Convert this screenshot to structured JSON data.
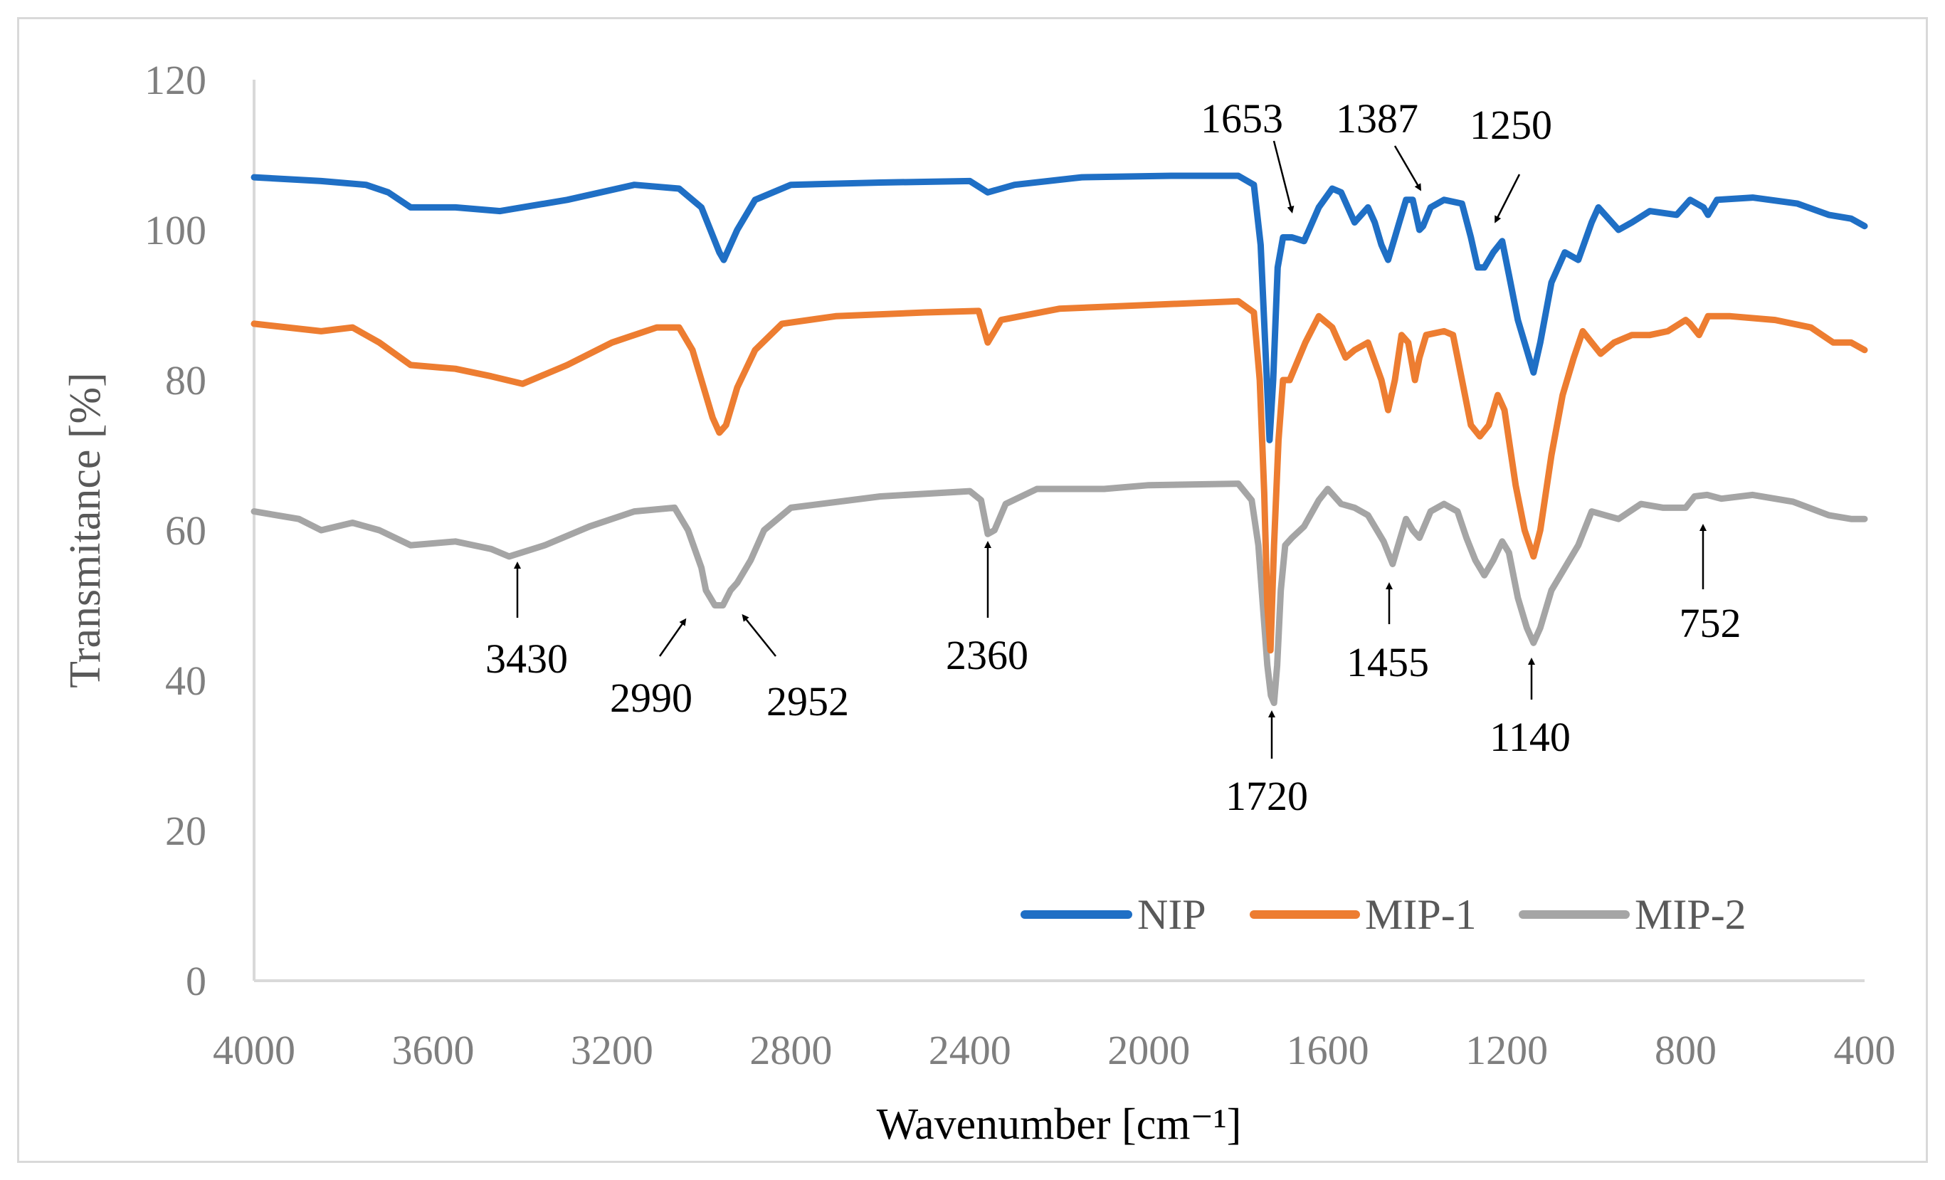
{
  "chart_data": {
    "type": "line",
    "title": "",
    "xlabel": "Wavenumber [cm⁻¹]",
    "ylabel": "Transmitance [%]",
    "xlim": [
      4000,
      400
    ],
    "ylim": [
      0,
      120
    ],
    "x_ticks": [
      "4000",
      "3600",
      "3200",
      "2800",
      "2400",
      "2000",
      "1600",
      "1200",
      "800",
      "400"
    ],
    "y_ticks": [
      "0",
      "20",
      "40",
      "60",
      "80",
      "100",
      "120"
    ],
    "legend_position": "bottom-right",
    "series": [
      {
        "name": "NIP",
        "color": "#1f6fc5",
        "points": [
          [
            4000,
            107
          ],
          [
            3850,
            106.5
          ],
          [
            3750,
            106
          ],
          [
            3700,
            105
          ],
          [
            3650,
            103
          ],
          [
            3550,
            103
          ],
          [
            3450,
            102.5
          ],
          [
            3300,
            104
          ],
          [
            3150,
            106
          ],
          [
            3050,
            105.5
          ],
          [
            3000,
            103
          ],
          [
            2980,
            100
          ],
          [
            2960,
            97
          ],
          [
            2950,
            96
          ],
          [
            2920,
            100
          ],
          [
            2880,
            104
          ],
          [
            2800,
            106
          ],
          [
            2600,
            106.3
          ],
          [
            2400,
            106.5
          ],
          [
            2360,
            105
          ],
          [
            2300,
            106
          ],
          [
            2150,
            107
          ],
          [
            1950,
            107.2
          ],
          [
            1800,
            107.2
          ],
          [
            1765,
            106
          ],
          [
            1750,
            98
          ],
          [
            1740,
            85
          ],
          [
            1730,
            72
          ],
          [
            1722,
            80
          ],
          [
            1712,
            95
          ],
          [
            1700,
            99
          ],
          [
            1680,
            99
          ],
          [
            1653,
            98.5
          ],
          [
            1620,
            103
          ],
          [
            1590,
            105.5
          ],
          [
            1570,
            105
          ],
          [
            1540,
            101
          ],
          [
            1510,
            103
          ],
          [
            1495,
            101
          ],
          [
            1480,
            98
          ],
          [
            1465,
            96
          ],
          [
            1450,
            99
          ],
          [
            1440,
            101
          ],
          [
            1425,
            104
          ],
          [
            1410,
            104
          ],
          [
            1395,
            100
          ],
          [
            1387,
            100.5
          ],
          [
            1370,
            103
          ],
          [
            1340,
            104
          ],
          [
            1300,
            103.5
          ],
          [
            1280,
            99
          ],
          [
            1265,
            95
          ],
          [
            1250,
            95
          ],
          [
            1230,
            97
          ],
          [
            1210,
            98.5
          ],
          [
            1195,
            94
          ],
          [
            1175,
            88
          ],
          [
            1155,
            84
          ],
          [
            1140,
            81
          ],
          [
            1125,
            85
          ],
          [
            1100,
            93
          ],
          [
            1070,
            97
          ],
          [
            1040,
            96
          ],
          [
            1010,
            101
          ],
          [
            995,
            103
          ],
          [
            980,
            102
          ],
          [
            950,
            100
          ],
          [
            920,
            101
          ],
          [
            880,
            102.5
          ],
          [
            820,
            102
          ],
          [
            790,
            104
          ],
          [
            760,
            103
          ],
          [
            750,
            102
          ],
          [
            730,
            104
          ],
          [
            650,
            104.3
          ],
          [
            550,
            103.5
          ],
          [
            480,
            102
          ],
          [
            430,
            101.5
          ],
          [
            400,
            100.5
          ]
        ]
      },
      {
        "name": "MIP-1",
        "color": "#ed7d31",
        "points": [
          [
            4000,
            87.5
          ],
          [
            3850,
            86.5
          ],
          [
            3780,
            87
          ],
          [
            3720,
            85
          ],
          [
            3650,
            82
          ],
          [
            3550,
            81.5
          ],
          [
            3470,
            80.5
          ],
          [
            3400,
            79.5
          ],
          [
            3300,
            82
          ],
          [
            3200,
            85
          ],
          [
            3100,
            87
          ],
          [
            3050,
            87
          ],
          [
            3020,
            84
          ],
          [
            3000,
            80
          ],
          [
            2975,
            75
          ],
          [
            2960,
            73
          ],
          [
            2945,
            74
          ],
          [
            2920,
            79
          ],
          [
            2880,
            84
          ],
          [
            2820,
            87.5
          ],
          [
            2700,
            88.5
          ],
          [
            2500,
            89
          ],
          [
            2380,
            89.2
          ],
          [
            2360,
            85
          ],
          [
            2330,
            88
          ],
          [
            2200,
            89.5
          ],
          [
            2000,
            90
          ],
          [
            1800,
            90.5
          ],
          [
            1765,
            89
          ],
          [
            1752,
            80
          ],
          [
            1742,
            65
          ],
          [
            1735,
            50
          ],
          [
            1728,
            44
          ],
          [
            1720,
            58
          ],
          [
            1710,
            72
          ],
          [
            1700,
            80
          ],
          [
            1685,
            80
          ],
          [
            1650,
            85
          ],
          [
            1620,
            88.5
          ],
          [
            1590,
            87
          ],
          [
            1560,
            83
          ],
          [
            1540,
            84
          ],
          [
            1510,
            85
          ],
          [
            1480,
            80
          ],
          [
            1465,
            76
          ],
          [
            1450,
            80
          ],
          [
            1435,
            86
          ],
          [
            1420,
            85
          ],
          [
            1405,
            80
          ],
          [
            1395,
            83
          ],
          [
            1380,
            86
          ],
          [
            1340,
            86.5
          ],
          [
            1320,
            86
          ],
          [
            1300,
            80
          ],
          [
            1280,
            74
          ],
          [
            1260,
            72.5
          ],
          [
            1240,
            74
          ],
          [
            1220,
            78
          ],
          [
            1205,
            76
          ],
          [
            1180,
            66
          ],
          [
            1160,
            60
          ],
          [
            1140,
            56.5
          ],
          [
            1125,
            60
          ],
          [
            1100,
            70
          ],
          [
            1075,
            78
          ],
          [
            1050,
            83
          ],
          [
            1030,
            86.5
          ],
          [
            1010,
            85
          ],
          [
            990,
            83.5
          ],
          [
            960,
            85
          ],
          [
            920,
            86
          ],
          [
            880,
            86
          ],
          [
            840,
            86.5
          ],
          [
            800,
            88
          ],
          [
            790,
            87.5
          ],
          [
            770,
            86
          ],
          [
            750,
            88.5
          ],
          [
            700,
            88.5
          ],
          [
            600,
            88
          ],
          [
            520,
            87
          ],
          [
            470,
            85
          ],
          [
            430,
            85
          ],
          [
            400,
            84
          ]
        ]
      },
      {
        "name": "MIP-2",
        "color": "#a5a5a5",
        "points": [
          [
            4000,
            62.5
          ],
          [
            3900,
            61.5
          ],
          [
            3850,
            60
          ],
          [
            3780,
            61
          ],
          [
            3720,
            60
          ],
          [
            3650,
            58
          ],
          [
            3550,
            58.5
          ],
          [
            3470,
            57.5
          ],
          [
            3430,
            56.5
          ],
          [
            3350,
            58
          ],
          [
            3250,
            60.5
          ],
          [
            3150,
            62.5
          ],
          [
            3060,
            63
          ],
          [
            3030,
            60
          ],
          [
            3000,
            55
          ],
          [
            2990,
            52
          ],
          [
            2970,
            50
          ],
          [
            2952,
            50
          ],
          [
            2935,
            52
          ],
          [
            2920,
            53
          ],
          [
            2890,
            56
          ],
          [
            2860,
            60
          ],
          [
            2800,
            63
          ],
          [
            2600,
            64.5
          ],
          [
            2400,
            65.2
          ],
          [
            2375,
            64
          ],
          [
            2360,
            59.5
          ],
          [
            2345,
            60
          ],
          [
            2320,
            63.5
          ],
          [
            2250,
            65.5
          ],
          [
            2100,
            65.5
          ],
          [
            2000,
            66
          ],
          [
            1800,
            66.2
          ],
          [
            1770,
            64
          ],
          [
            1755,
            58
          ],
          [
            1745,
            50
          ],
          [
            1735,
            42
          ],
          [
            1727,
            38
          ],
          [
            1720,
            37
          ],
          [
            1713,
            42
          ],
          [
            1705,
            52
          ],
          [
            1695,
            58
          ],
          [
            1680,
            59
          ],
          [
            1653,
            60.5
          ],
          [
            1620,
            64
          ],
          [
            1600,
            65.5
          ],
          [
            1570,
            63.5
          ],
          [
            1540,
            63
          ],
          [
            1510,
            62
          ],
          [
            1490,
            60
          ],
          [
            1475,
            58.5
          ],
          [
            1455,
            55.5
          ],
          [
            1440,
            58.5
          ],
          [
            1425,
            61.5
          ],
          [
            1410,
            60
          ],
          [
            1395,
            59
          ],
          [
            1370,
            62.5
          ],
          [
            1340,
            63.5
          ],
          [
            1310,
            62.5
          ],
          [
            1290,
            59
          ],
          [
            1270,
            56
          ],
          [
            1250,
            54
          ],
          [
            1230,
            56
          ],
          [
            1210,
            58.5
          ],
          [
            1195,
            57
          ],
          [
            1175,
            51
          ],
          [
            1155,
            47
          ],
          [
            1140,
            45
          ],
          [
            1125,
            47
          ],
          [
            1100,
            52
          ],
          [
            1070,
            55
          ],
          [
            1040,
            58
          ],
          [
            1010,
            62.5
          ],
          [
            980,
            62
          ],
          [
            950,
            61.5
          ],
          [
            900,
            63.5
          ],
          [
            850,
            63
          ],
          [
            800,
            63
          ],
          [
            780,
            64.5
          ],
          [
            752,
            64.7
          ],
          [
            720,
            64.2
          ],
          [
            650,
            64.7
          ],
          [
            560,
            63.8
          ],
          [
            480,
            62
          ],
          [
            430,
            61.5
          ],
          [
            400,
            61.5
          ]
        ]
      }
    ],
    "annotations": [
      {
        "label": "1653",
        "x": 1653
      },
      {
        "label": "1387",
        "x": 1387
      },
      {
        "label": "1250",
        "x": 1250
      },
      {
        "label": "3430",
        "x": 3430
      },
      {
        "label": "2990",
        "x": 2990
      },
      {
        "label": "2952",
        "x": 2952
      },
      {
        "label": "2360",
        "x": 2360
      },
      {
        "label": "1720",
        "x": 1720
      },
      {
        "label": "1455",
        "x": 1455
      },
      {
        "label": "1140",
        "x": 1140
      },
      {
        "label": "752",
        "x": 752
      }
    ]
  }
}
